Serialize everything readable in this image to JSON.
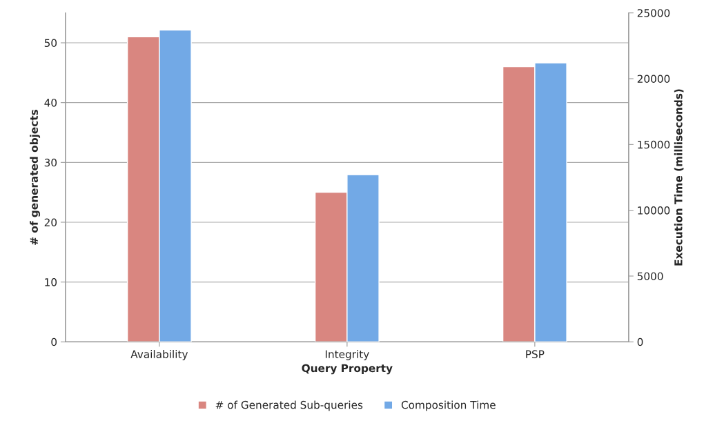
{
  "chart_data": {
    "type": "bar",
    "xlabel": "Query Property",
    "ylabel": "# of generated objects",
    "y2label": "Execution Time (milliseconds)",
    "categories": [
      "Availability",
      "Integrity",
      "PSP"
    ],
    "series": [
      {
        "name": "# of Generated Sub-queries",
        "color": "#d98680",
        "values": [
          51,
          25,
          46
        ]
      },
      {
        "name": "Composition Time",
        "color": "#72a9e6",
        "values": [
          23700,
          12700,
          21200
        ],
        "axis": "y2"
      }
    ],
    "ylim": [
      0,
      55
    ],
    "yticks": [
      0,
      10,
      20,
      30,
      40,
      50
    ],
    "y2lim": [
      0,
      25000
    ],
    "y2ticks": [
      0,
      5000,
      10000,
      15000,
      20000,
      25000
    ],
    "grid": "y",
    "legend": "bottom"
  }
}
